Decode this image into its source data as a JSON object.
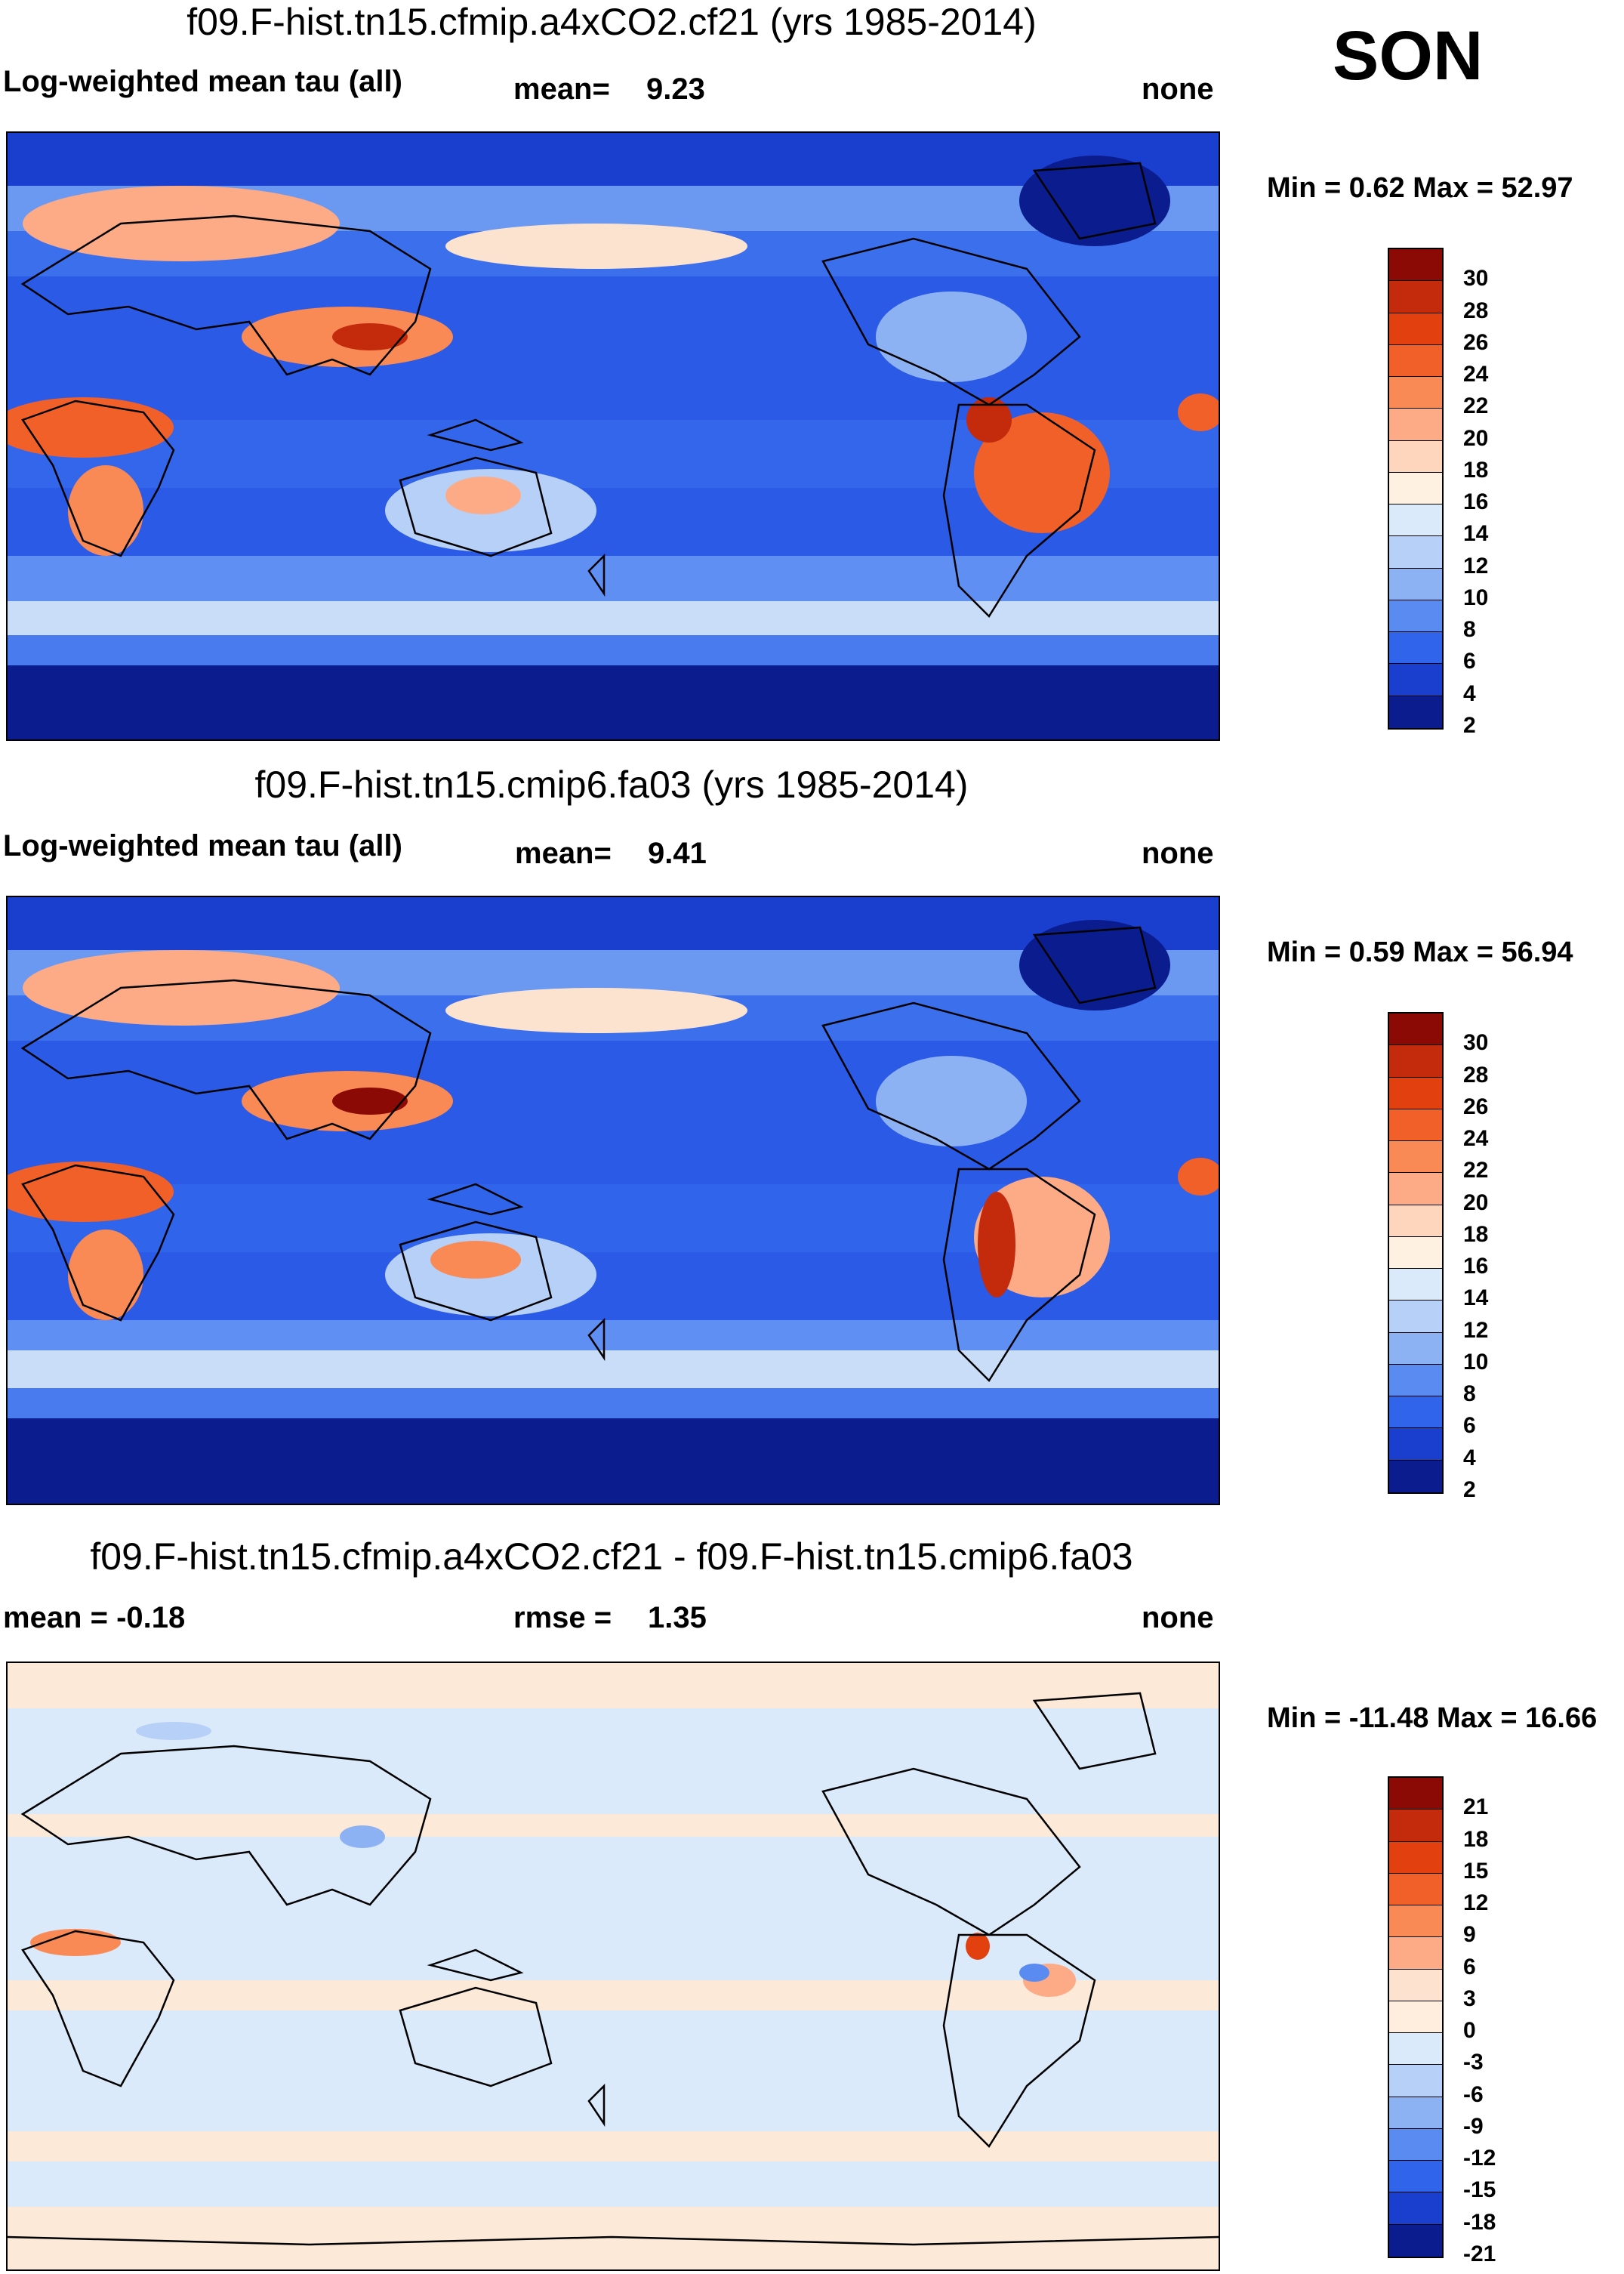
{
  "season": "SON",
  "panels": [
    {
      "title": "f09.F-hist.tn15.cfmip.a4xCO2.cf21 (yrs 1985-2014)",
      "left_label": "Log-weighted mean tau (all)",
      "mid_label": "mean=",
      "mid_value": "9.23",
      "right_label": "none",
      "minmax": "Min =   0.62 Max =  52.97",
      "colorbar_labels": [
        "30",
        "28",
        "26",
        "24",
        "22",
        "20",
        "18",
        "16",
        "14",
        "12",
        "10",
        "8",
        "6",
        "4",
        "2"
      ],
      "colors": [
        "#8c0a05",
        "#c42a0c",
        "#e2400f",
        "#f2602a",
        "#f98a56",
        "#fcab86",
        "#fdd6bd",
        "#fff1e2",
        "#dbeafa",
        "#b6d0f7",
        "#8db2f4",
        "#5a8bf0",
        "#2f64eb",
        "#1a3fcf",
        "#0a1c8e"
      ]
    },
    {
      "title": "f09.F-hist.tn15.cmip6.fa03 (yrs 1985-2014)",
      "left_label": "Log-weighted mean tau (all)",
      "mid_label": "mean=",
      "mid_value": "9.41",
      "right_label": "none",
      "minmax": "Min =   0.59 Max =  56.94",
      "colorbar_labels": [
        "30",
        "28",
        "26",
        "24",
        "22",
        "20",
        "18",
        "16",
        "14",
        "12",
        "10",
        "8",
        "6",
        "4",
        "2"
      ],
      "colors": [
        "#8c0a05",
        "#c42a0c",
        "#e2400f",
        "#f2602a",
        "#f98a56",
        "#fcab86",
        "#fdd6bd",
        "#fff1e2",
        "#dbeafa",
        "#b6d0f7",
        "#8db2f4",
        "#5a8bf0",
        "#2f64eb",
        "#1a3fcf",
        "#0a1c8e"
      ]
    },
    {
      "title": "f09.F-hist.tn15.cfmip.a4xCO2.cf21 - f09.F-hist.tn15.cmip6.fa03",
      "left_label": "mean =  -0.18",
      "mid_label": "rmse =",
      "mid_value": "1.35",
      "right_label": "none",
      "minmax": "Min = -11.48 Max =  16.66",
      "colorbar_labels": [
        "21",
        "18",
        "15",
        "12",
        "9",
        "6",
        "3",
        "0",
        "-3",
        "-6",
        "-9",
        "-12",
        "-15",
        "-18",
        "-21"
      ],
      "colors": [
        "#8c0a05",
        "#c42a0c",
        "#e2400f",
        "#f2602a",
        "#f98a56",
        "#fcab86",
        "#fde2cf",
        "#ffeedd",
        "#dbeafa",
        "#b6d0f7",
        "#8db2f4",
        "#5a8bf0",
        "#2f64eb",
        "#1a3fcf",
        "#0a1c8e"
      ]
    }
  ]
}
